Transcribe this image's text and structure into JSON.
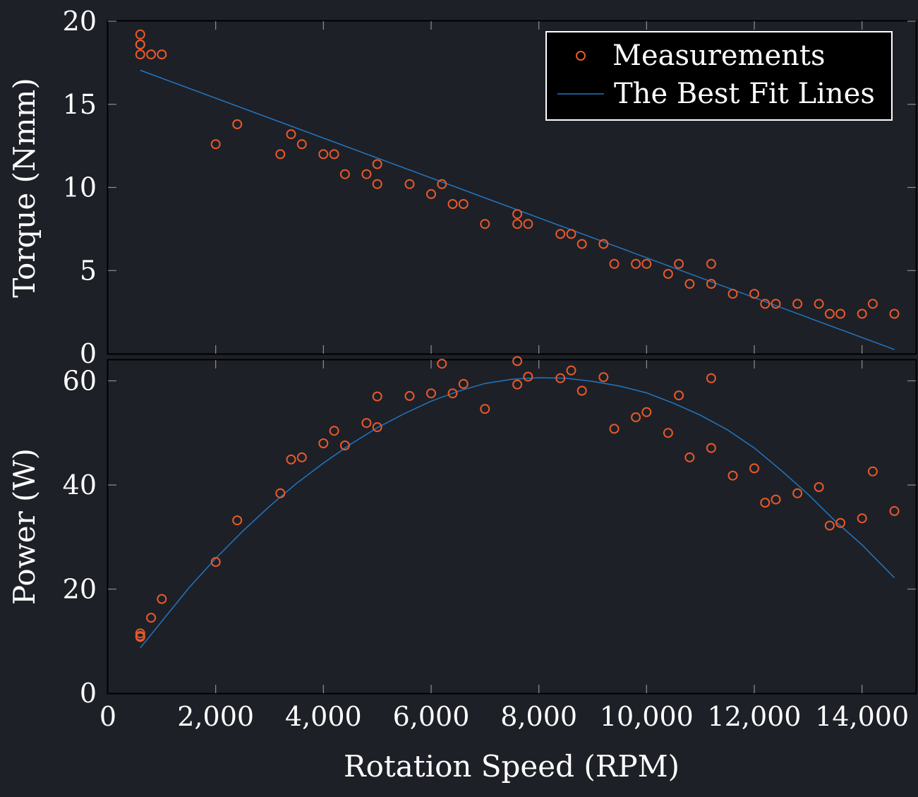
{
  "chart_data": [
    {
      "type": "scatter",
      "title": "",
      "xlabel": "",
      "ylabel": "Torque (Nmm)",
      "xlim": [
        0,
        15000
      ],
      "ylim": [
        0,
        20
      ],
      "x_ticks": [
        0,
        2000,
        4000,
        6000,
        8000,
        10000,
        12000,
        14000
      ],
      "y_ticks": [
        0,
        5,
        10,
        15,
        20
      ],
      "y_tick_labels": [
        "0",
        "5",
        "10",
        "15",
        "20"
      ],
      "legend": {
        "position": "top-right",
        "entries": [
          "Measurements",
          "The Best Fit Lines"
        ]
      },
      "series": [
        {
          "name": "Measurements",
          "kind": "scatter",
          "points": [
            [
              600,
              19.2
            ],
            [
              600,
              18.6
            ],
            [
              600,
              18.6
            ],
            [
              600,
              18.0
            ],
            [
              800,
              18.0
            ],
            [
              1000,
              18.0
            ],
            [
              2000,
              12.6
            ],
            [
              2400,
              13.8
            ],
            [
              3200,
              12.0
            ],
            [
              3400,
              13.2
            ],
            [
              3600,
              12.6
            ],
            [
              4000,
              12.0
            ],
            [
              4200,
              12.0
            ],
            [
              4400,
              10.8
            ],
            [
              4800,
              10.8
            ],
            [
              5000,
              11.4
            ],
            [
              5000,
              10.2
            ],
            [
              5600,
              10.2
            ],
            [
              6000,
              9.6
            ],
            [
              6200,
              10.2
            ],
            [
              6400,
              9.0
            ],
            [
              6600,
              9.0
            ],
            [
              7000,
              7.8
            ],
            [
              7600,
              8.4
            ],
            [
              7600,
              7.8
            ],
            [
              7800,
              7.8
            ],
            [
              8400,
              7.2
            ],
            [
              8600,
              7.2
            ],
            [
              8800,
              6.6
            ],
            [
              9200,
              6.6
            ],
            [
              9400,
              5.4
            ],
            [
              9800,
              5.4
            ],
            [
              10000,
              5.4
            ],
            [
              10400,
              4.8
            ],
            [
              10600,
              5.4
            ],
            [
              10800,
              4.2
            ],
            [
              11200,
              5.4
            ],
            [
              11200,
              4.2
            ],
            [
              11600,
              3.6
            ],
            [
              12000,
              3.6
            ],
            [
              12200,
              3.0
            ],
            [
              12400,
              3.0
            ],
            [
              12800,
              3.0
            ],
            [
              13200,
              3.0
            ],
            [
              13400,
              2.4
            ],
            [
              13600,
              2.4
            ],
            [
              14000,
              2.4
            ],
            [
              14200,
              3.0
            ],
            [
              14600,
              2.4
            ]
          ]
        },
        {
          "name": "The Best Fit Lines",
          "kind": "line",
          "points": [
            [
              600,
              17.05
            ],
            [
              14600,
              0.25
            ]
          ]
        }
      ]
    },
    {
      "type": "scatter",
      "title": "",
      "xlabel": "Rotation Speed (RPM)",
      "ylabel": "Power (W)",
      "xlim": [
        0,
        15000
      ],
      "ylim": [
        0,
        64
      ],
      "x_ticks": [
        0,
        2000,
        4000,
        6000,
        8000,
        10000,
        12000,
        14000
      ],
      "x_tick_labels": [
        "0",
        "2,000",
        "4,000",
        "6,000",
        "8,000",
        "10,000",
        "12,000",
        "14,000"
      ],
      "y_ticks": [
        0,
        20,
        40,
        60
      ],
      "y_tick_labels": [
        "0",
        "20",
        "40",
        "60"
      ],
      "series": [
        {
          "name": "Measurements",
          "kind": "scatter",
          "points": [
            [
              600,
              11.5
            ],
            [
              600,
              11.0
            ],
            [
              600,
              10.8
            ],
            [
              800,
              14.5
            ],
            [
              1000,
              18.1
            ],
            [
              2000,
              25.2
            ],
            [
              2400,
              33.2
            ],
            [
              3200,
              38.4
            ],
            [
              3400,
              44.9
            ],
            [
              3600,
              45.3
            ],
            [
              4000,
              48.0
            ],
            [
              4200,
              50.4
            ],
            [
              4400,
              47.6
            ],
            [
              4800,
              51.9
            ],
            [
              5000,
              57.0
            ],
            [
              5000,
              51.1
            ],
            [
              5600,
              57.1
            ],
            [
              6000,
              57.6
            ],
            [
              6200,
              63.3
            ],
            [
              6400,
              57.6
            ],
            [
              6600,
              59.4
            ],
            [
              7000,
              54.6
            ],
            [
              7600,
              63.8
            ],
            [
              7600,
              59.3
            ],
            [
              7800,
              60.8
            ],
            [
              8400,
              60.5
            ],
            [
              8600,
              62.0
            ],
            [
              8800,
              58.1
            ],
            [
              9200,
              60.7
            ],
            [
              9400,
              50.8
            ],
            [
              9800,
              53.0
            ],
            [
              10000,
              54.0
            ],
            [
              10400,
              50.0
            ],
            [
              10600,
              57.2
            ],
            [
              10800,
              45.3
            ],
            [
              11200,
              60.5
            ],
            [
              11200,
              47.1
            ],
            [
              11600,
              41.8
            ],
            [
              12000,
              43.2
            ],
            [
              12200,
              36.6
            ],
            [
              12400,
              37.2
            ],
            [
              12800,
              38.4
            ],
            [
              13200,
              39.6
            ],
            [
              13400,
              32.2
            ],
            [
              13600,
              32.7
            ],
            [
              14000,
              33.6
            ],
            [
              14200,
              42.6
            ],
            [
              14600,
              35.0
            ]
          ]
        },
        {
          "name": "The Best Fit Lines",
          "kind": "line",
          "points": [
            [
              600,
              8.7
            ],
            [
              1500,
              20.2
            ],
            [
              2000,
              25.9
            ],
            [
              2500,
              31.1
            ],
            [
              3000,
              35.9
            ],
            [
              3500,
              40.3
            ],
            [
              4000,
              44.2
            ],
            [
              4500,
              47.8
            ],
            [
              5000,
              51.0
            ],
            [
              5500,
              53.7
            ],
            [
              6000,
              56.1
            ],
            [
              6500,
              58.0
            ],
            [
              7000,
              59.5
            ],
            [
              7500,
              60.3
            ],
            [
              8000,
              60.6
            ],
            [
              8500,
              60.5
            ],
            [
              9000,
              59.9
            ],
            [
              9500,
              59.0
            ],
            [
              10000,
              57.7
            ],
            [
              10500,
              55.7
            ],
            [
              11000,
              53.4
            ],
            [
              11500,
              50.6
            ],
            [
              12000,
              47.1
            ],
            [
              12500,
              42.8
            ],
            [
              13000,
              38.2
            ],
            [
              13500,
              33.1
            ],
            [
              14000,
              28.5
            ],
            [
              14600,
              22.2
            ]
          ]
        }
      ]
    }
  ],
  "colors": {
    "background": "#1e2027",
    "axes_frame": "#000000",
    "text": "#ffffff",
    "tick_marks": "#8a8f99",
    "measurement_marker": "#e8592a",
    "fit_line": "#1f77c4",
    "legend_background": "#000000",
    "legend_border": "#ffffff"
  }
}
